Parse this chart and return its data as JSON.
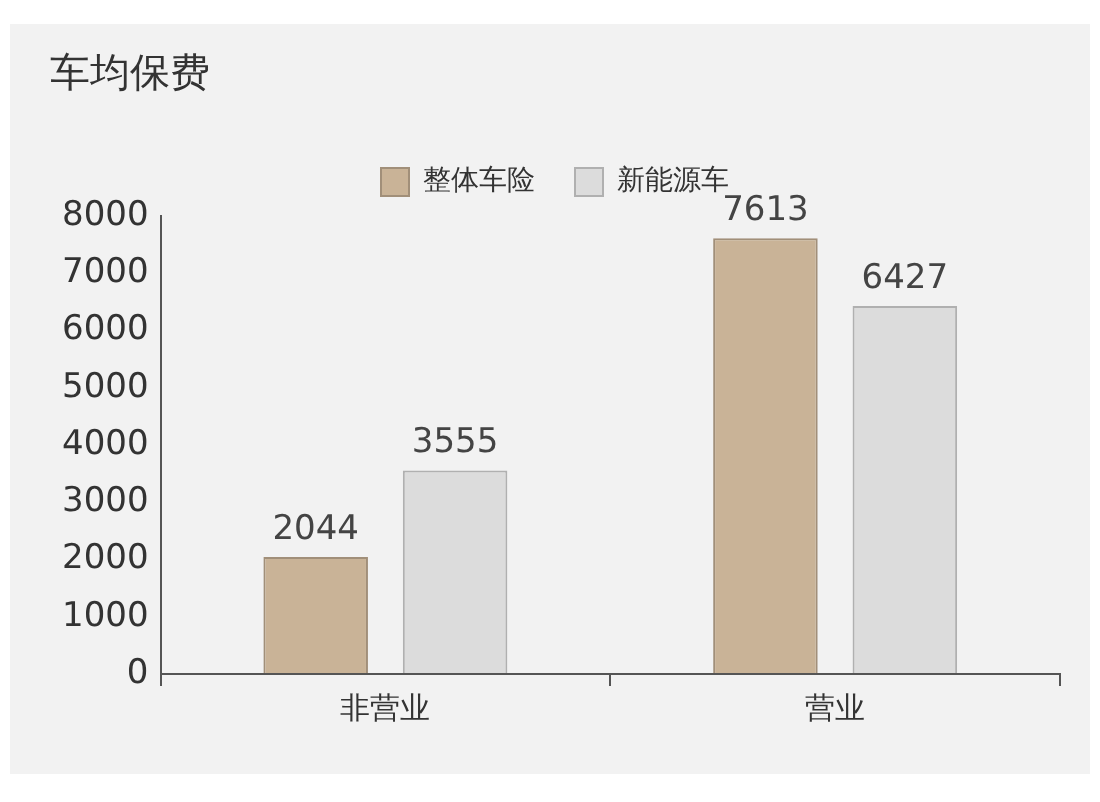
{
  "chart_data": {
    "type": "bar",
    "title": "车均保费",
    "categories": [
      "非营业",
      "营业"
    ],
    "series": [
      {
        "name": "整体车险",
        "color": "#c9b397",
        "values": [
          2044,
          7613
        ]
      },
      {
        "name": "新能源车",
        "color": "#dcdcdc",
        "values": [
          3555,
          6427
        ]
      }
    ],
    "ylim": [
      0,
      8000
    ],
    "yticks": [
      0,
      1000,
      2000,
      3000,
      4000,
      5000,
      6000,
      7000,
      8000
    ],
    "grid": false,
    "legend": "top",
    "data_labels": true
  }
}
